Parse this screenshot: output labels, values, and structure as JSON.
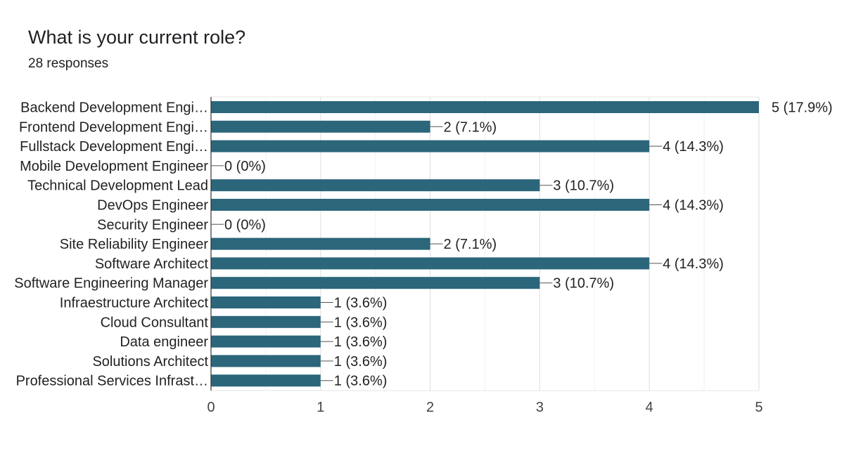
{
  "question": {
    "title": "What is your current role?",
    "responses": "28 responses"
  },
  "colors": {
    "bar": "#2b667b",
    "grid": "#e6e6e6",
    "axis": "#333333",
    "text": "#222222"
  },
  "chart_data": {
    "type": "bar",
    "orientation": "horizontal",
    "title": "What is your current role?",
    "subtitle": "28 responses",
    "categories": [
      "Backend Development Engi…",
      "Frontend Development Engi…",
      "Fullstack Development Engi…",
      "Mobile Development Engineer",
      "Technical Development Lead",
      "DevOps Engineer",
      "Security Engineer",
      "Site Reliability Engineer",
      "Software Architect",
      "Software Engineering Manager",
      "Infraestructure Architect",
      "Cloud Consultant",
      "Data engineer",
      "Solutions Architect",
      "Professional Services Infrast…"
    ],
    "values": [
      5,
      2,
      4,
      0,
      3,
      4,
      0,
      2,
      4,
      3,
      1,
      1,
      1,
      1,
      1
    ],
    "data_labels": [
      "5 (17.9%)",
      "2 (7.1%)",
      "4 (14.3%)",
      "0 (0%)",
      "3 (10.7%)",
      "4 (14.3%)",
      "0 (0%)",
      "2 (7.1%)",
      "4 (14.3%)",
      "3 (10.7%)",
      "1 (3.6%)",
      "1 (3.6%)",
      "1 (3.6%)",
      "1 (3.6%)",
      "1 (3.6%)"
    ],
    "xlim": [
      0,
      5
    ],
    "xticks": [
      "0",
      "1",
      "2",
      "3",
      "4",
      "5"
    ],
    "xlabel": "",
    "ylabel": "",
    "grid": true,
    "legend": "none"
  }
}
